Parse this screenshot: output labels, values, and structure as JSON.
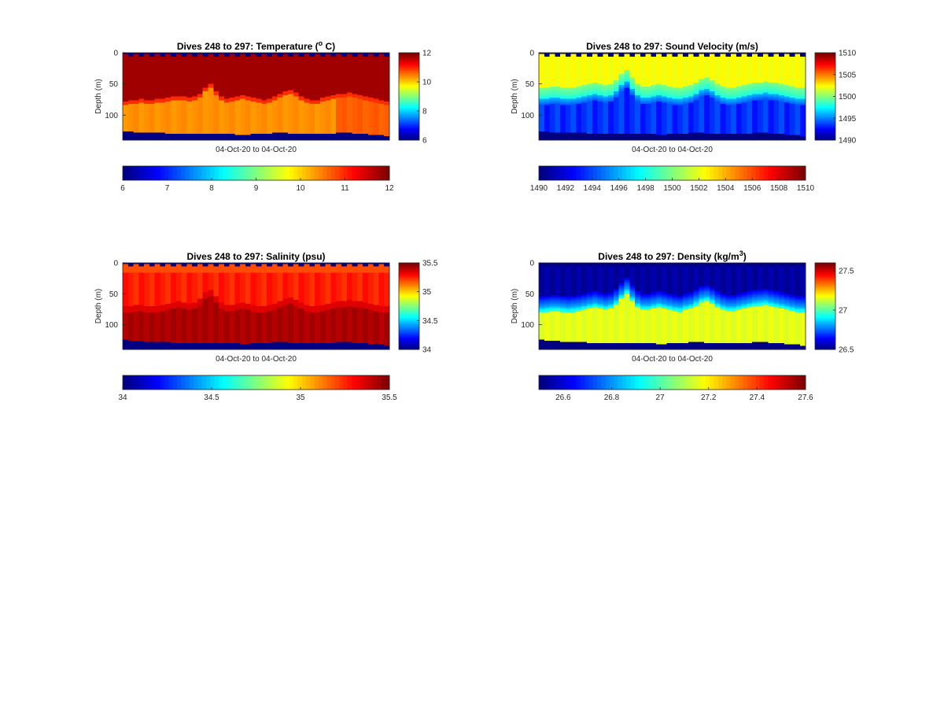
{
  "figure": {
    "background": "#ffffff"
  },
  "chart_data": [
    {
      "id": "temperature",
      "type": "heatmap",
      "title_parts": [
        "Dives 248 to 297: Temperature (",
        "o",
        " C)"
      ],
      "title": "Dives 248 to 297: Temperature (o C)",
      "xlabel": "04-Oct-20 to 04-Oct-20",
      "ylabel": "Depth (m)",
      "yticks": [
        "0",
        "50",
        "100"
      ],
      "ytick_values": [
        0,
        50,
        100
      ],
      "ylim": [
        0,
        140
      ],
      "n_dives": 50,
      "clim": [
        6,
        12
      ],
      "side_colorbar_ticks": [
        "6",
        "8",
        "10",
        "12"
      ],
      "side_colorbar_values": [
        6,
        8,
        10,
        12
      ],
      "bottom_colorbar_ticks": [
        "6",
        "7",
        "8",
        "9",
        "10",
        "11",
        "12"
      ],
      "bottom_colorbar_values": [
        6,
        7,
        8,
        9,
        10,
        11,
        12
      ],
      "layers": {
        "surface_gap_value": 6,
        "upper_value": 11.8,
        "lower_value": 10.4,
        "lower_right_value": 10.7,
        "bottom_value": 6,
        "thermocline_depth": [
          78,
          76,
          75,
          74,
          75,
          76,
          74,
          73,
          72,
          70,
          69,
          70,
          72,
          70,
          66,
          55,
          50,
          62,
          70,
          74,
          72,
          70,
          68,
          70,
          72,
          74,
          75,
          73,
          70,
          66,
          62,
          60,
          64,
          70,
          74,
          76,
          75,
          72,
          70,
          68,
          66,
          65,
          64,
          66,
          68,
          70,
          72,
          74,
          76,
          78
        ],
        "bottom_depth": [
          126,
          126,
          127,
          127,
          127,
          128,
          128,
          128,
          129,
          129,
          129,
          130,
          130,
          130,
          130,
          129,
          129,
          130,
          130,
          130,
          130,
          131,
          131,
          131,
          130,
          130,
          129,
          129,
          128,
          128,
          128,
          129,
          129,
          129,
          130,
          130,
          130,
          130,
          129,
          129,
          128,
          128,
          128,
          129,
          130,
          130,
          131,
          131,
          132,
          134
        ]
      }
    },
    {
      "id": "sound_velocity",
      "type": "heatmap",
      "title_parts": [
        "Dives 248 to 297: Sound Velocity (m/s)"
      ],
      "title": "Dives 248 to 297: Sound Velocity (m/s)",
      "xlabel": "04-Oct-20 to 04-Oct-20",
      "ylabel": "Depth (m)",
      "yticks": [
        "0",
        "50",
        "100"
      ],
      "ytick_values": [
        0,
        50,
        100
      ],
      "ylim": [
        0,
        140
      ],
      "n_dives": 50,
      "clim": [
        1490,
        1510
      ],
      "side_colorbar_ticks": [
        "1490",
        "1495",
        "1500",
        "1505",
        "1510"
      ],
      "side_colorbar_values": [
        1490,
        1495,
        1500,
        1505,
        1510
      ],
      "bottom_colorbar_ticks": [
        "1490",
        "1492",
        "1494",
        "1496",
        "1498",
        "1500",
        "1502",
        "1504",
        "1506",
        "1508",
        "1510"
      ],
      "bottom_colorbar_values": [
        1490,
        1492,
        1494,
        1496,
        1498,
        1500,
        1502,
        1504,
        1506,
        1508,
        1510
      ],
      "layers": {
        "surface_gap_value": 1490,
        "upper_value": 1502.6,
        "mid_value": 1500,
        "lower_value": 1494,
        "bottom_value": 1490,
        "thermocline_depth": [
          74,
          73,
          72,
          72,
          73,
          74,
          73,
          72,
          70,
          68,
          66,
          68,
          70,
          68,
          62,
          52,
          46,
          58,
          68,
          72,
          72,
          70,
          68,
          70,
          72,
          73,
          74,
          72,
          70,
          65,
          60,
          58,
          62,
          68,
          72,
          74,
          74,
          72,
          70,
          68,
          66,
          65,
          64,
          65,
          66,
          68,
          70,
          72,
          74,
          74
        ],
        "bottom_depth": [
          126,
          126,
          127,
          127,
          127,
          128,
          128,
          128,
          128,
          129,
          129,
          129,
          130,
          130,
          130,
          129,
          129,
          129,
          130,
          130,
          130,
          130,
          131,
          131,
          130,
          130,
          129,
          129,
          128,
          128,
          128,
          129,
          129,
          129,
          130,
          130,
          130,
          130,
          129,
          129,
          128,
          128,
          128,
          129,
          130,
          130,
          131,
          131,
          132,
          134
        ]
      }
    },
    {
      "id": "salinity",
      "type": "heatmap",
      "title_parts": [
        "Dives 248 to 297: Salinity (psu)"
      ],
      "title": "Dives 248 to 297: Salinity (psu)",
      "xlabel": "04-Oct-20 to 04-Oct-20",
      "ylabel": "Depth (m)",
      "yticks": [
        "0",
        "50",
        "100"
      ],
      "ytick_values": [
        0,
        50,
        100
      ],
      "ylim": [
        0,
        140
      ],
      "n_dives": 50,
      "clim": [
        34,
        35.5
      ],
      "side_colorbar_ticks": [
        "34",
        "34.5",
        "35",
        "35.5"
      ],
      "side_colorbar_values": [
        34,
        34.5,
        35,
        35.5
      ],
      "bottom_colorbar_ticks": [
        "34",
        "34.5",
        "35",
        "35.5"
      ],
      "bottom_colorbar_values": [
        34,
        34.5,
        35,
        35.5
      ],
      "layers": {
        "surface_gap_value": 34,
        "surface_strip_value": 35.2,
        "upper_value": 35.3,
        "lower_value": 35.42,
        "bottom_value": 34,
        "thermocline_depth": [
          70,
          69,
          68,
          68,
          69,
          70,
          69,
          68,
          66,
          64,
          62,
          64,
          66,
          64,
          58,
          48,
          44,
          54,
          64,
          68,
          68,
          66,
          64,
          66,
          68,
          69,
          70,
          68,
          66,
          62,
          58,
          56,
          60,
          64,
          68,
          70,
          70,
          68,
          66,
          64,
          62,
          61,
          60,
          61,
          62,
          64,
          66,
          68,
          70,
          70
        ],
        "bottom_depth": [
          124,
          125,
          126,
          126,
          127,
          127,
          128,
          128,
          128,
          129,
          129,
          129,
          130,
          130,
          130,
          129,
          129,
          129,
          130,
          130,
          130,
          130,
          131,
          131,
          130,
          130,
          129,
          129,
          128,
          128,
          128,
          129,
          129,
          129,
          130,
          130,
          130,
          130,
          129,
          129,
          128,
          128,
          128,
          129,
          130,
          130,
          131,
          131,
          132,
          134
        ]
      }
    },
    {
      "id": "density",
      "type": "heatmap",
      "title_parts": [
        "Dives 248 to 297: Density (kg/m",
        "3",
        ")"
      ],
      "title": "Dives 248 to 297: Density (kg/m3)",
      "xlabel": "04-Oct-20 to 04-Oct-20",
      "ylabel": "Depth (m)",
      "yticks": [
        "0",
        "50",
        "100"
      ],
      "ytick_values": [
        0,
        50,
        100
      ],
      "ylim": [
        0,
        140
      ],
      "n_dives": 50,
      "clim": [
        26.5,
        27.6
      ],
      "side_colorbar_ticks": [
        "26.5",
        "27",
        "27.5"
      ],
      "side_colorbar_values": [
        26.5,
        27,
        27.5
      ],
      "bottom_colorbar_ticks": [
        "26.6",
        "26.8",
        "27",
        "27.2",
        "27.4",
        "27.6"
      ],
      "bottom_colorbar_values": [
        26.6,
        26.8,
        27,
        27.2,
        27.4,
        27.6
      ],
      "layers": {
        "surface_gap_value": 26.5,
        "upper_value": 26.52,
        "mid_value": 26.8,
        "lower_value": 27.15,
        "bottom_value": 26.5,
        "thermocline_depth": [
          76,
          75,
          74,
          74,
          75,
          76,
          75,
          74,
          72,
          70,
          68,
          70,
          72,
          70,
          64,
          54,
          46,
          58,
          68,
          72,
          72,
          70,
          68,
          70,
          72,
          74,
          75,
          72,
          70,
          65,
          60,
          58,
          62,
          68,
          72,
          74,
          74,
          72,
          70,
          68,
          66,
          65,
          64,
          66,
          68,
          70,
          72,
          74,
          76,
          76
        ],
        "bottom_depth": [
          124,
          125,
          126,
          126,
          127,
          127,
          128,
          128,
          128,
          129,
          129,
          129,
          130,
          130,
          130,
          129,
          129,
          129,
          130,
          130,
          130,
          130,
          131,
          131,
          130,
          130,
          129,
          129,
          128,
          128,
          128,
          129,
          129,
          129,
          130,
          130,
          130,
          130,
          129,
          129,
          128,
          128,
          128,
          129,
          130,
          130,
          131,
          131,
          132,
          134
        ]
      }
    }
  ]
}
